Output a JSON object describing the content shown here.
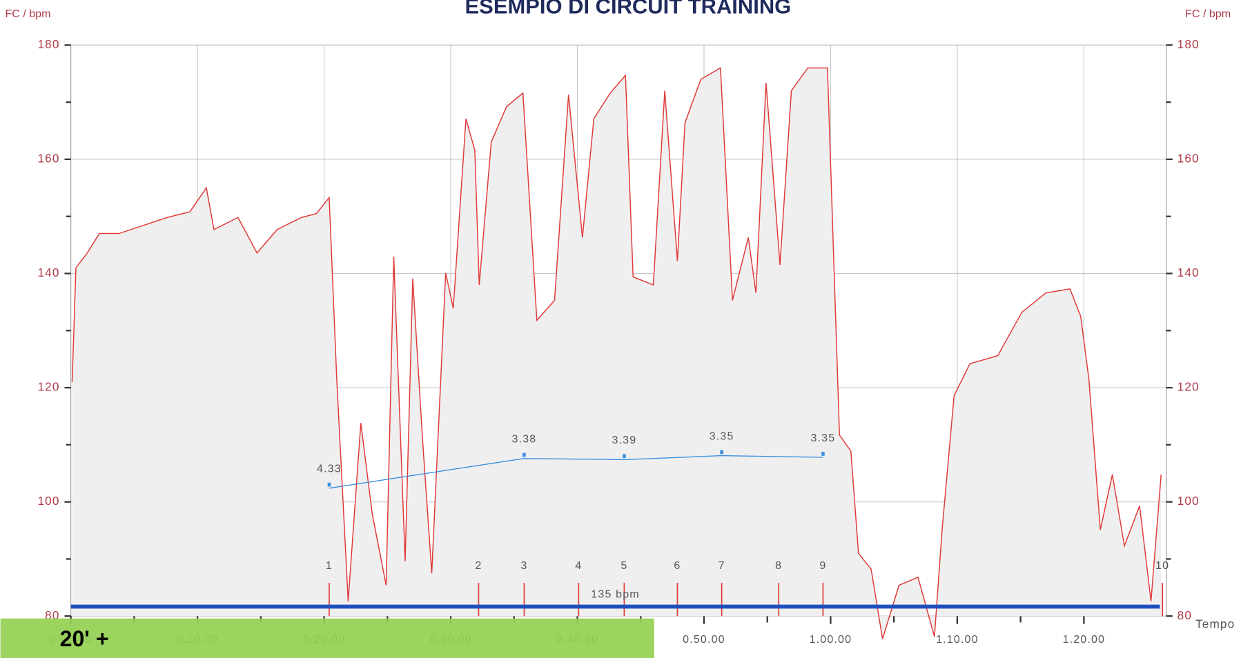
{
  "chart_data": {
    "type": "area",
    "title": "ESEMPIO DI CIRCUIT TRAINING",
    "ylabel": "FC / bpm",
    "y2label": "FC / bpm",
    "xlabel": "Tempo",
    "xlim": [
      0,
      86.5
    ],
    "ylim": [
      80,
      180
    ],
    "xticks": [
      {
        "value": 0,
        "label": "0.00.00"
      },
      {
        "value": 10,
        "label": "0.10.00"
      },
      {
        "value": 20,
        "label": "0.20.00"
      },
      {
        "value": 30,
        "label": "0.30.00"
      },
      {
        "value": 40,
        "label": "0.40.00"
      },
      {
        "value": 50,
        "label": "0.50.00"
      },
      {
        "value": 60,
        "label": "1.00.00"
      },
      {
        "value": 70,
        "label": "1.10.00"
      },
      {
        "value": 80,
        "label": "1.20.00"
      }
    ],
    "yticks": [
      80,
      100,
      120,
      140,
      160,
      180
    ],
    "grid": true,
    "series": [
      {
        "name": "FC",
        "color": "#e03a3a",
        "x": [
          0.1,
          0.4,
          1.3,
          2.25,
          3.8,
          5.7,
          7.6,
          9.4,
          10.7,
          11.3,
          13.2,
          14.7,
          16.3,
          18.2,
          19.4,
          20.4,
          21,
          21.9,
          22.9,
          23.8,
          24.9,
          25.5,
          26.4,
          27,
          27.75,
          28.5,
          29.6,
          30.2,
          31.2,
          31.9,
          32.25,
          33.2,
          34.4,
          35.7,
          36.8,
          38.2,
          39.3,
          40.4,
          41.3,
          42.6,
          43.8,
          44.4,
          46,
          46.9,
          47.9,
          48.5,
          49.75,
          51.3,
          52.25,
          53.5,
          54.1,
          54.9,
          56,
          56.9,
          58.2,
          59.75,
          60.7,
          61.6,
          62.2,
          63.2,
          64.1,
          65.4,
          66.9,
          68.2,
          68.8,
          69.75,
          71,
          73.2,
          75.1,
          77,
          78.9,
          79.75,
          80.4,
          81.3,
          82.25,
          83.2,
          84.4,
          85.3,
          86.1
        ],
        "values": [
          121,
          141,
          143.6,
          147,
          147,
          148.4,
          149.8,
          150.8,
          155,
          147.7,
          149.8,
          143.6,
          147.7,
          149.8,
          150.5,
          153.3,
          121.4,
          82.6,
          113.8,
          97.9,
          85.4,
          142.9,
          89.6,
          139.1,
          111.7,
          87.5,
          140.1,
          133.9,
          167.1,
          161.6,
          138,
          163,
          169.2,
          171.6,
          131.8,
          135.3,
          171.3,
          146.3,
          167.1,
          171.6,
          174.7,
          139.4,
          138,
          172,
          142.2,
          166.4,
          174,
          176,
          135.3,
          146.3,
          136.6,
          173.4,
          141.5,
          172,
          176,
          176,
          111.7,
          108.9,
          91,
          88.2,
          76,
          85.4,
          86.8,
          76.4,
          95,
          118.6,
          124.2,
          125.6,
          133.2,
          136.6,
          137.3,
          132.5,
          121.4,
          95.1,
          104.8,
          92.3,
          99.3,
          82.6,
          104.8
        ]
      }
    ],
    "annotations": [
      {
        "text": "4.33",
        "x": 20.4,
        "y": 102.4
      },
      {
        "text": "3.38",
        "x": 35.8,
        "y": 107.6
      },
      {
        "text": "3.39",
        "x": 43.7,
        "y": 107.4
      },
      {
        "text": "3.35",
        "x": 51.4,
        "y": 108.1
      },
      {
        "text": "3.35",
        "x": 59.4,
        "y": 107.8
      }
    ],
    "laps": {
      "labels": [
        "1",
        "2",
        "3",
        "4",
        "5",
        "6",
        "7",
        "8",
        "9",
        "10"
      ],
      "x": [
        20.4,
        32.2,
        35.8,
        40.1,
        43.7,
        47.9,
        51.4,
        55.9,
        59.4,
        86.2
      ]
    },
    "threshold_label": "135 bpm",
    "note": "20' +"
  }
}
